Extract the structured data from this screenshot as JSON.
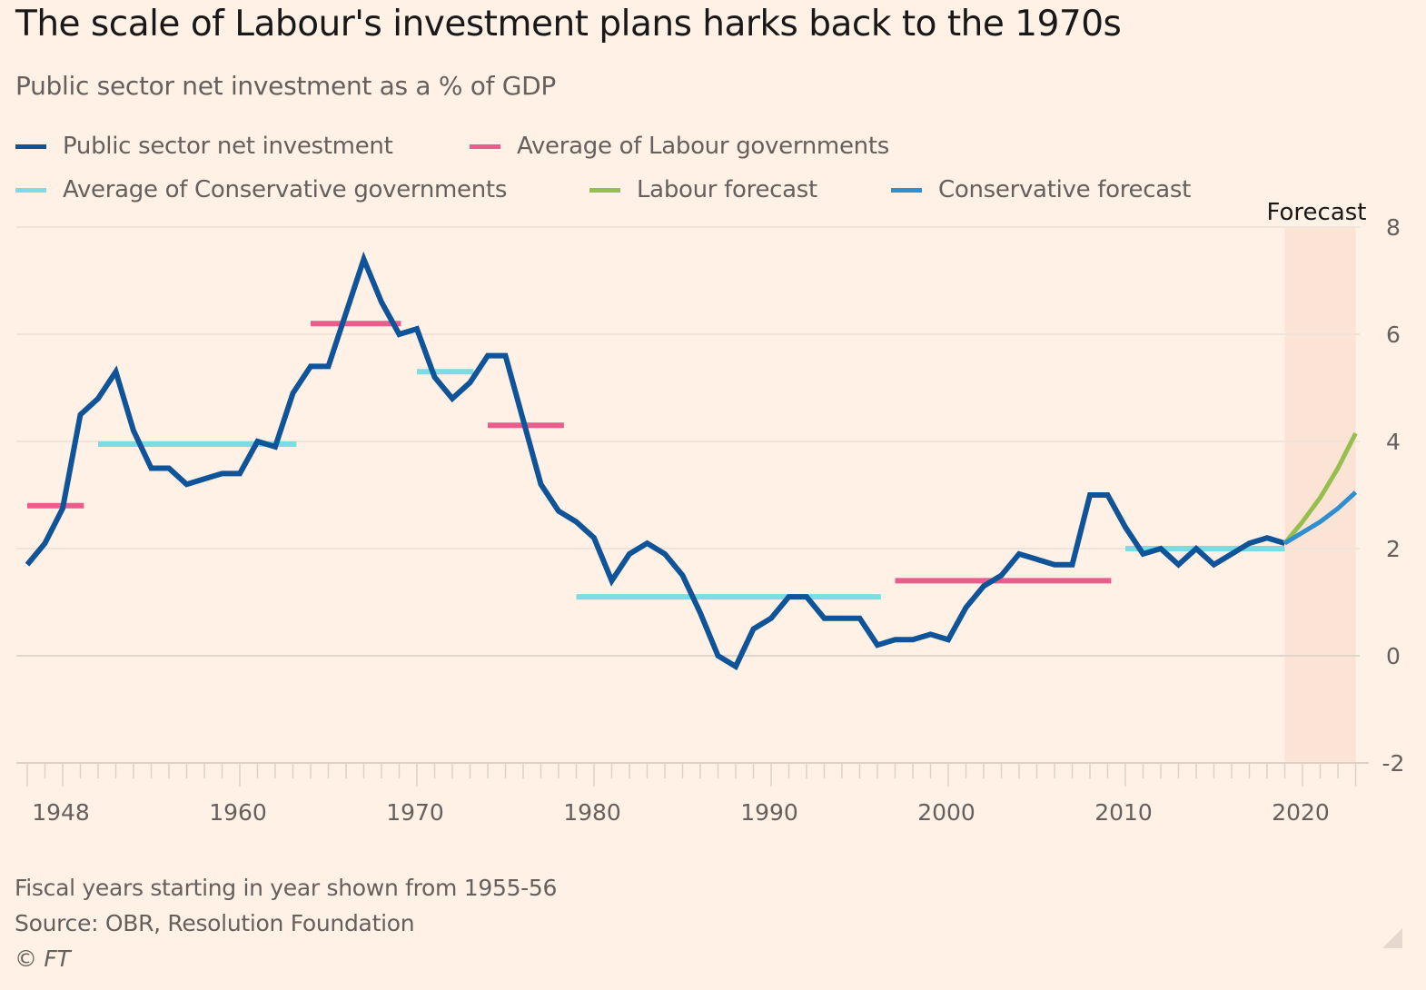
{
  "chart_data": {
    "type": "line",
    "title": "The scale of Labour's investment plans harks back to the 1970s",
    "subtitle": "Public sector net investment as a % of GDP",
    "xlabel": "",
    "ylabel": "",
    "ylim": [
      -2,
      8
    ],
    "xlim": [
      1948,
      2023
    ],
    "grid": true,
    "y_axis_side": "right",
    "y_ticks": [
      8,
      6,
      4,
      2,
      0,
      -2
    ],
    "x_tick_labels": [
      {
        "label": "1948",
        "at": 1950
      },
      {
        "label": "1960",
        "at": 1960
      },
      {
        "label": "1970",
        "at": 1970
      },
      {
        "label": "1980",
        "at": 1980
      },
      {
        "label": "1990",
        "at": 1990
      },
      {
        "label": "2000",
        "at": 2000
      },
      {
        "label": "2010",
        "at": 2010
      },
      {
        "label": "2020",
        "at": 2020
      }
    ],
    "forecast_region": {
      "label": "Forecast",
      "from": 2019,
      "to": 2023
    },
    "legend_position": "top-left",
    "series": [
      {
        "name": "Public sector net investment",
        "color": "#0F5499",
        "kind": "line",
        "x": [
          1948,
          1949,
          1950,
          1951,
          1952,
          1953,
          1954,
          1955,
          1956,
          1957,
          1958,
          1959,
          1960,
          1961,
          1962,
          1963,
          1964,
          1965,
          1966,
          1967,
          1968,
          1969,
          1970,
          1971,
          1972,
          1973,
          1974,
          1975,
          1976,
          1977,
          1978,
          1979,
          1980,
          1981,
          1982,
          1983,
          1984,
          1985,
          1986,
          1987,
          1988,
          1989,
          1990,
          1991,
          1992,
          1993,
          1994,
          1995,
          1996,
          1997,
          1998,
          1999,
          2000,
          2001,
          2002,
          2003,
          2004,
          2005,
          2006,
          2007,
          2008,
          2009,
          2010,
          2011,
          2012,
          2013,
          2014,
          2015,
          2016,
          2017,
          2018,
          2019
        ],
        "values": [
          1.7,
          2.1,
          2.75,
          4.5,
          4.8,
          5.3,
          4.2,
          3.5,
          3.5,
          3.2,
          3.3,
          3.4,
          3.4,
          4.0,
          3.9,
          4.9,
          5.4,
          5.4,
          6.4,
          7.4,
          6.6,
          6.0,
          6.1,
          5.2,
          4.8,
          5.1,
          5.6,
          5.6,
          4.4,
          3.2,
          2.7,
          2.5,
          2.2,
          1.4,
          1.9,
          2.1,
          1.9,
          1.5,
          0.8,
          0.0,
          -0.2,
          0.5,
          0.7,
          1.1,
          1.1,
          0.7,
          0.7,
          0.7,
          0.2,
          0.3,
          0.3,
          0.4,
          0.3,
          0.9,
          1.3,
          1.5,
          1.9,
          1.8,
          1.7,
          1.7,
          3.0,
          3.0,
          2.4,
          1.9,
          2.0,
          1.7,
          2.0,
          1.7,
          1.9,
          2.1,
          2.2,
          2.1
        ]
      },
      {
        "name": "Labour forecast",
        "color": "#96BF50",
        "kind": "line",
        "x": [
          2019,
          2020,
          2021,
          2022,
          2023
        ],
        "values": [
          2.1,
          2.5,
          2.95,
          3.5,
          4.15
        ]
      },
      {
        "name": "Conservative forecast",
        "color": "#2E8FD0",
        "kind": "line",
        "x": [
          2019,
          2020,
          2021,
          2022,
          2023
        ],
        "values": [
          2.1,
          2.3,
          2.5,
          2.75,
          3.05
        ]
      },
      {
        "name": "Average of Labour governments",
        "color": "#E95D8C",
        "kind": "segments",
        "segments": [
          {
            "from": 1948,
            "to": 1951.2,
            "value": 2.8
          },
          {
            "from": 1964,
            "to": 1969.1,
            "value": 6.2
          },
          {
            "from": 1974,
            "to": 1978.3,
            "value": 4.3
          },
          {
            "from": 1997,
            "to": 2009.2,
            "value": 1.4
          }
        ]
      },
      {
        "name": "Average of Conservative governments",
        "color": "#7BDCE4",
        "kind": "segments",
        "segments": [
          {
            "from": 1952,
            "to": 1963.2,
            "value": 3.95
          },
          {
            "from": 1970,
            "to": 1973.2,
            "value": 5.3
          },
          {
            "from": 1979,
            "to": 1996.2,
            "value": 1.1
          },
          {
            "from": 2010,
            "to": 2019,
            "value": 2.0
          }
        ]
      }
    ],
    "notes": [
      "Fiscal years starting in year shown from 1955-56",
      "Source: OBR, Resolution Foundation",
      "© FT"
    ]
  },
  "legend": [
    {
      "label": "Public sector net investment",
      "color": "#0F5499"
    },
    {
      "label": "Average of Labour governments",
      "color": "#E95D8C"
    },
    {
      "label": "Average of Conservative governments",
      "color": "#7BDCE4"
    },
    {
      "label": "Labour forecast",
      "color": "#96BF50"
    },
    {
      "label": "Conservative forecast",
      "color": "#2E8FD0"
    }
  ],
  "footer": {
    "note": "Fiscal years starting in year shown from 1955-56",
    "source": "Source: OBR, Resolution Foundation",
    "copyright": "© FT"
  }
}
